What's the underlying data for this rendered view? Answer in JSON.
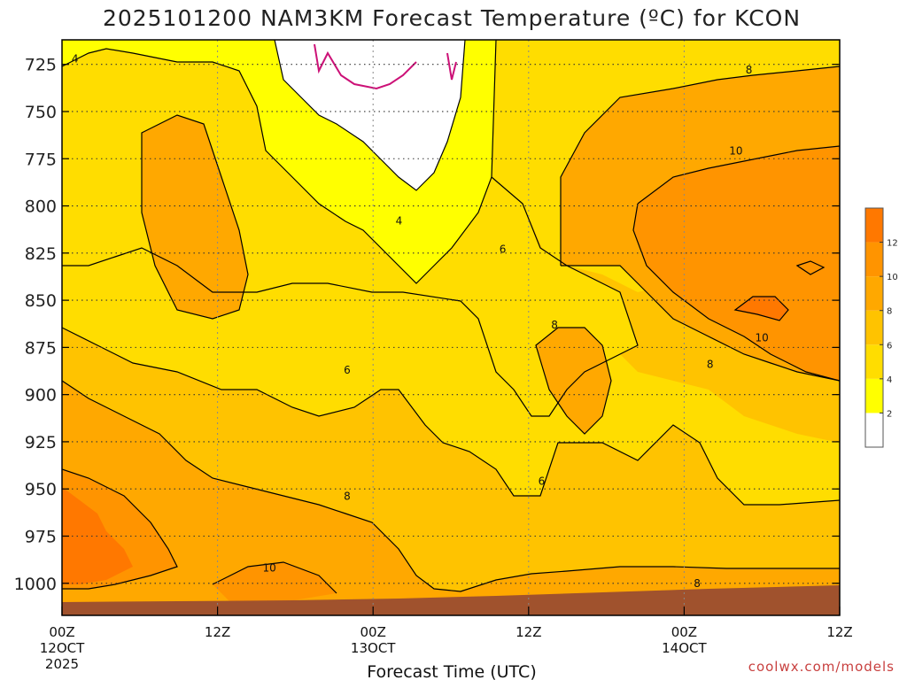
{
  "chart_data": {
    "type": "heatmap",
    "title": "2025101200 NAM3KM Forecast Temperature (ºC) for KCON",
    "xlabel": "Forecast Time (UTC)",
    "y_ticks": [
      725,
      750,
      775,
      800,
      825,
      850,
      875,
      900,
      925,
      950,
      975,
      1000
    ],
    "ylim": [
      1017,
      712
    ],
    "x_ticks": [
      {
        "hour": 0,
        "label": "00Z",
        "date": "12OCT",
        "year": "2025"
      },
      {
        "hour": 12,
        "label": "12Z",
        "date": "",
        "year": ""
      },
      {
        "hour": 24,
        "label": "00Z",
        "date": "13OCT",
        "year": ""
      },
      {
        "hour": 36,
        "label": "12Z",
        "date": "",
        "year": ""
      },
      {
        "hour": 48,
        "label": "00Z",
        "date": "14OCT",
        "year": ""
      },
      {
        "hour": 60,
        "label": "12Z",
        "date": "",
        "year": ""
      }
    ],
    "xlim": [
      0,
      60
    ],
    "grid": true,
    "legend": {
      "placement": "right",
      "levels": [
        0,
        2,
        4,
        6,
        8,
        10,
        12,
        14
      ],
      "tick_labels": [
        "2",
        "4",
        "6",
        "8",
        "10",
        "12"
      ],
      "colors": [
        "#ffffff",
        "#ffff00",
        "#ffdd00",
        "#ffc300",
        "#ffa800",
        "#ff9400",
        "#ff7800"
      ]
    },
    "contour_labels": [
      {
        "hour": 1,
        "pressure": 722,
        "text": "4"
      },
      {
        "hour": 26,
        "pressure": 808,
        "text": "4"
      },
      {
        "hour": 34,
        "pressure": 823,
        "text": "6"
      },
      {
        "hour": 22,
        "pressure": 887,
        "text": "6"
      },
      {
        "hour": 37,
        "pressure": 946,
        "text": "6"
      },
      {
        "hour": 53,
        "pressure": 728,
        "text": "8"
      },
      {
        "hour": 38,
        "pressure": 863,
        "text": "8"
      },
      {
        "hour": 22,
        "pressure": 954,
        "text": "8"
      },
      {
        "hour": 49,
        "pressure": 1000,
        "text": "8"
      },
      {
        "hour": 50,
        "pressure": 884,
        "text": "8"
      },
      {
        "hour": 52,
        "pressure": 771,
        "text": "10"
      },
      {
        "hour": 54,
        "pressure": 870,
        "text": "10"
      },
      {
        "hour": 16,
        "pressure": 992,
        "text": "10"
      }
    ],
    "terrain_color": "#a0522d"
  },
  "credit": "coolwx.com/models"
}
